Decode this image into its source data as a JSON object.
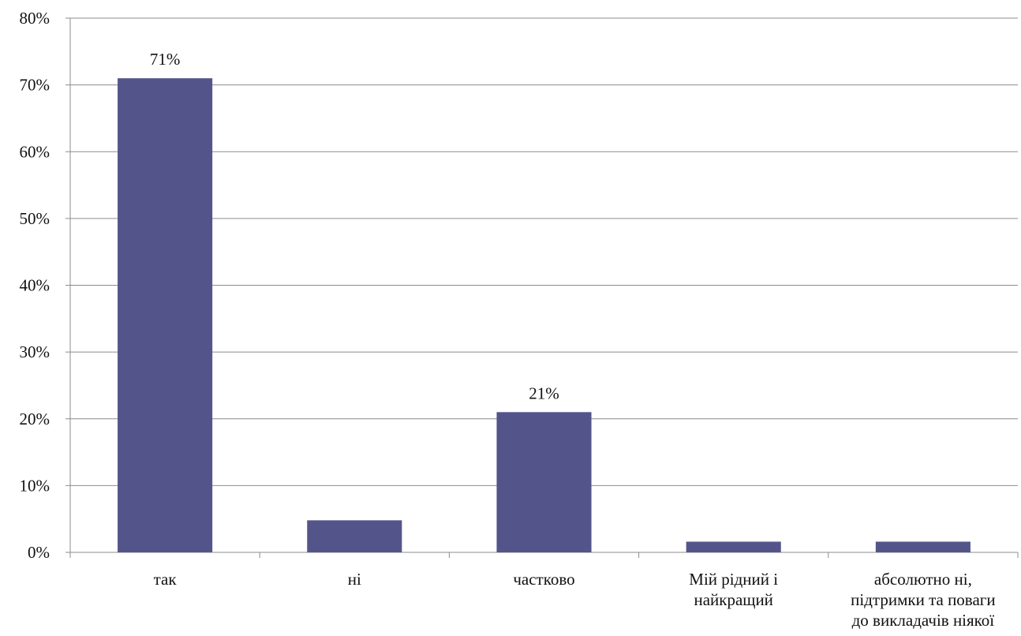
{
  "chart_data": {
    "type": "bar",
    "title": "",
    "xlabel": "",
    "ylabel": "",
    "categories": [
      [
        "так"
      ],
      [
        "ні"
      ],
      [
        "частково"
      ],
      [
        "Мій рідний і",
        "найкращий"
      ],
      [
        "абсолютно ні,",
        "підтримки та поваги",
        "до викладачів ніякої"
      ]
    ],
    "values": [
      71,
      4.8,
      21,
      1.6,
      1.6
    ],
    "data_labels": [
      "71%",
      "",
      "21%",
      "",
      ""
    ],
    "yticks": [
      "0%",
      "10%",
      "20%",
      "30%",
      "40%",
      "50%",
      "60%",
      "70%",
      "80%"
    ],
    "ylim": [
      0,
      80
    ],
    "grid": true,
    "legend": "none",
    "colors": {
      "bar": "#53558a",
      "grid": "#8c8c8c",
      "text": "#111111"
    }
  }
}
